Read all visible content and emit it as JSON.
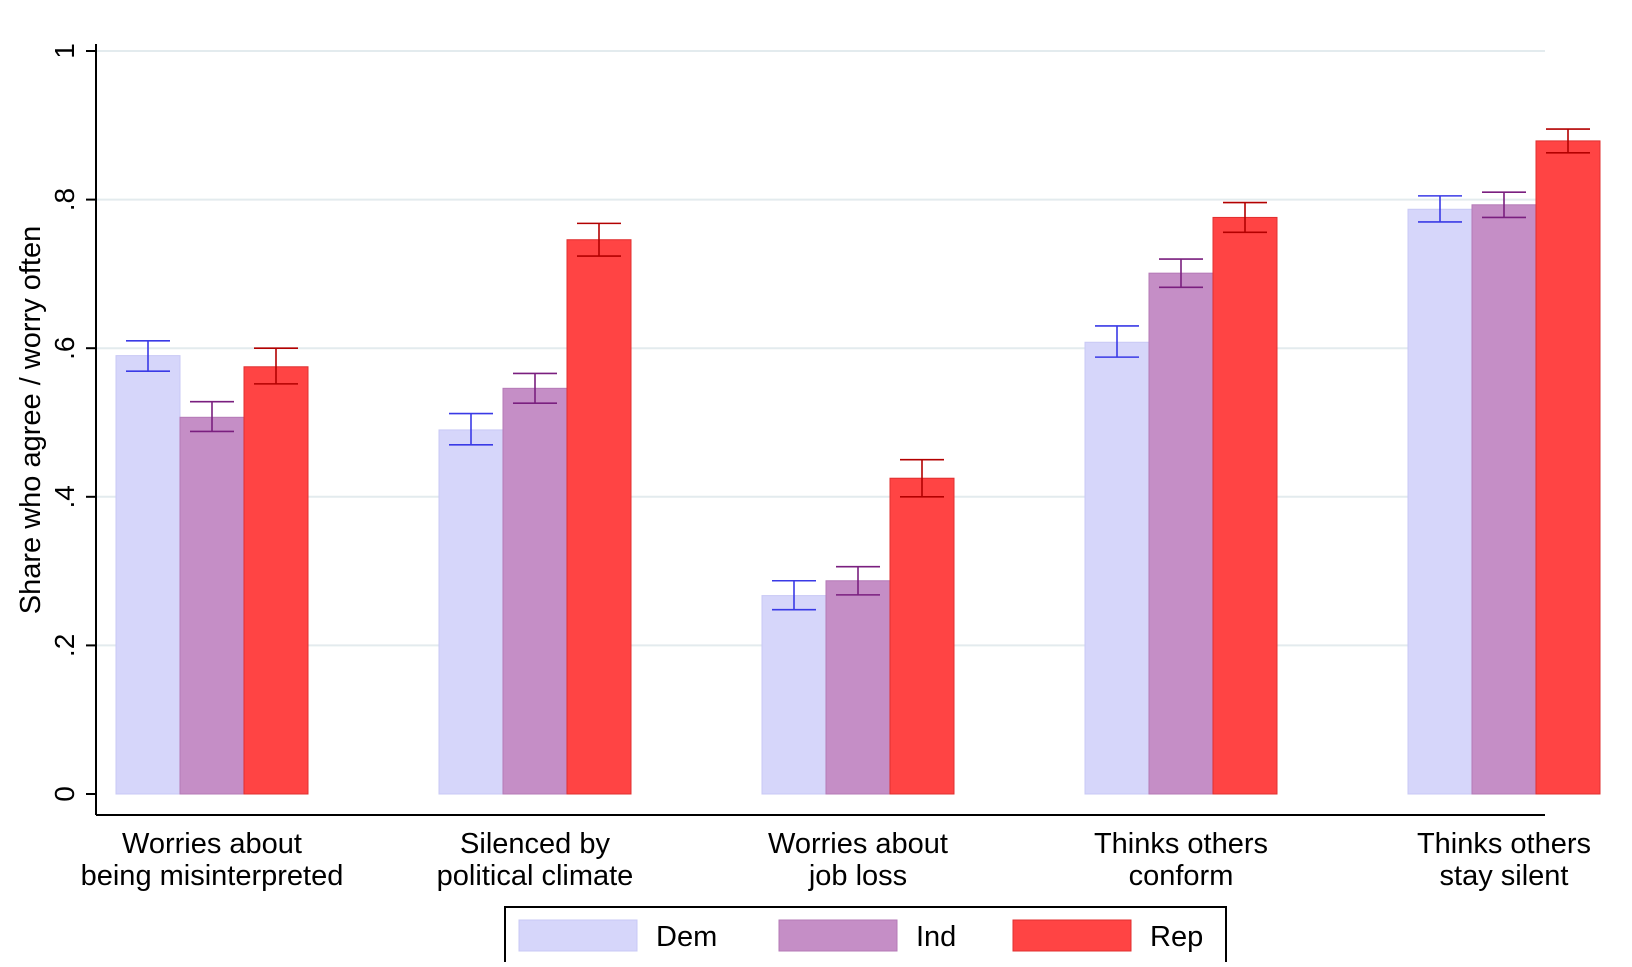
{
  "chart_data": {
    "type": "bar",
    "ylabel": "Share who agree / worry often",
    "ylim": [
      0,
      1
    ],
    "yticks": [
      {
        "value": 0,
        "label": "0"
      },
      {
        "value": 0.2,
        "label": ".2"
      },
      {
        "value": 0.4,
        "label": ".4"
      },
      {
        "value": 0.6,
        "label": ".6"
      },
      {
        "value": 0.8,
        "label": ".8"
      },
      {
        "value": 1,
        "label": "1"
      }
    ],
    "grid": true,
    "legend_position": "bottom",
    "categories": [
      [
        "Worries about",
        "being misinterpreted"
      ],
      [
        "Silenced by",
        "political climate"
      ],
      [
        "Worries about",
        "job loss"
      ],
      [
        "Thinks others",
        "conform"
      ],
      [
        "Thinks others",
        "stay silent"
      ]
    ],
    "series": [
      {
        "name": "Dem",
        "color": "#d6d6fa",
        "edge": "#c8c8f5",
        "ci_color": "#3a3ae6",
        "values": [
          0.59,
          0.49,
          0.267,
          0.608,
          0.787
        ],
        "ci_low": [
          0.569,
          0.47,
          0.248,
          0.588,
          0.77
        ],
        "ci_high": [
          0.61,
          0.512,
          0.287,
          0.63,
          0.805
        ]
      },
      {
        "name": "Ind",
        "color": "#c58ec6",
        "edge": "#b57ab7",
        "ci_color": "#7a1f7f",
        "values": [
          0.507,
          0.546,
          0.287,
          0.701,
          0.793
        ],
        "ci_low": [
          0.488,
          0.526,
          0.268,
          0.682,
          0.776
        ],
        "ci_high": [
          0.528,
          0.566,
          0.306,
          0.72,
          0.81
        ]
      },
      {
        "name": "Rep",
        "color": "#ff4444",
        "edge": "#e02f2f",
        "ci_color": "#b30000",
        "values": [
          0.575,
          0.746,
          0.425,
          0.776,
          0.879
        ],
        "ci_low": [
          0.552,
          0.724,
          0.4,
          0.756,
          0.863
        ],
        "ci_high": [
          0.6,
          0.768,
          0.45,
          0.796,
          0.895
        ]
      }
    ]
  }
}
